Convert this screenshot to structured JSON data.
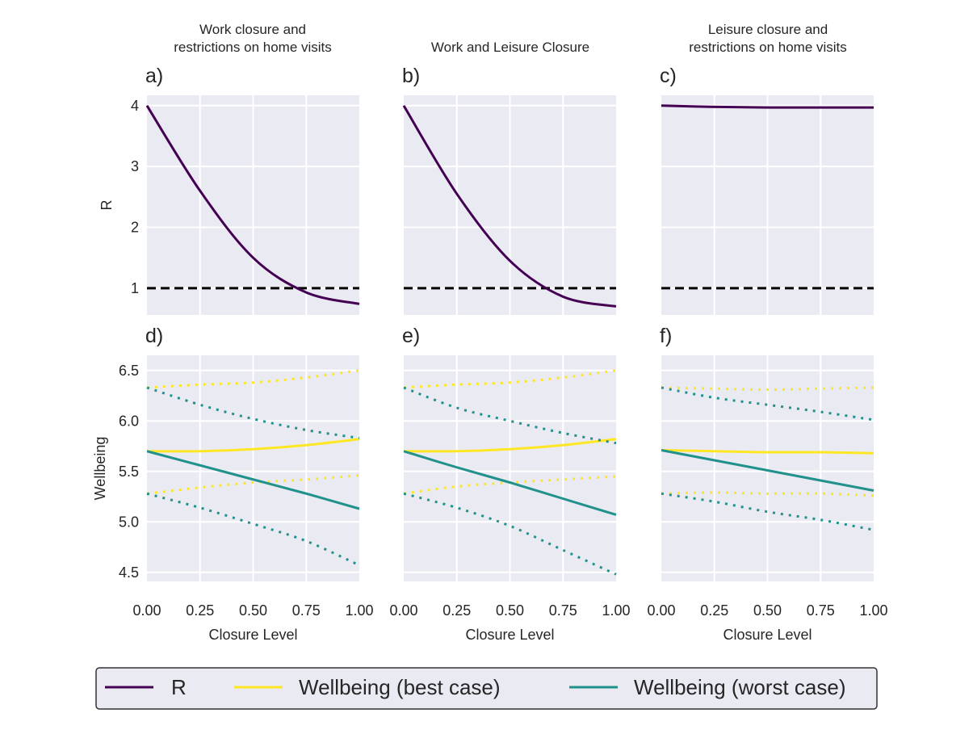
{
  "colors": {
    "R": "#440154",
    "best": "#fde725",
    "worst": "#21918c",
    "threshold": "#000000",
    "panel_bg": "#eaeaf2",
    "grid": "#ffffff"
  },
  "chart_data": [
    {
      "type": "line",
      "panel": "a)",
      "title": [
        "Work closure and",
        "restrictions on home visits"
      ],
      "ylabel": "R",
      "xlabel": "",
      "ylim": [
        0.56,
        4.17
      ],
      "xlim": [
        0,
        1
      ],
      "yticks": [
        "1",
        "2",
        "3",
        "4"
      ],
      "x": [
        0,
        0.25,
        0.5,
        0.75,
        1.0
      ],
      "series": [
        {
          "name": "R",
          "values": [
            4.0,
            2.6,
            1.5,
            0.93,
            0.74
          ]
        }
      ],
      "threshold": 1,
      "grid": true
    },
    {
      "type": "line",
      "panel": "b)",
      "title": [
        "Work and Leisure Closure"
      ],
      "ylabel": "",
      "xlabel": "",
      "ylim": [
        0.56,
        4.17
      ],
      "xlim": [
        0,
        1
      ],
      "x": [
        0,
        0.25,
        0.5,
        0.75,
        1.0
      ],
      "series": [
        {
          "name": "R",
          "values": [
            4.0,
            2.55,
            1.45,
            0.86,
            0.7
          ]
        }
      ],
      "threshold": 1,
      "grid": true
    },
    {
      "type": "line",
      "panel": "c)",
      "title": [
        "Leisure closure and",
        "restrictions on home visits"
      ],
      "ylabel": "",
      "xlabel": "",
      "ylim": [
        0.56,
        4.17
      ],
      "xlim": [
        0,
        1
      ],
      "x": [
        0,
        0.25,
        0.5,
        0.75,
        1.0
      ],
      "series": [
        {
          "name": "R",
          "values": [
            4.0,
            3.98,
            3.97,
            3.97,
            3.97
          ]
        }
      ],
      "threshold": 1,
      "grid": true
    },
    {
      "type": "line",
      "panel": "d)",
      "ylabel": "Wellbeing",
      "xlabel": "Closure Level",
      "ylim": [
        4.41,
        6.65
      ],
      "xlim": [
        0,
        1
      ],
      "yticks": [
        "4.5",
        "5.0",
        "5.5",
        "6.0",
        "6.5"
      ],
      "xticks": [
        "0.00",
        "0.25",
        "0.50",
        "0.75",
        "1.00"
      ],
      "x": [
        0,
        0.25,
        0.5,
        0.75,
        1.0
      ],
      "series": [
        {
          "name": "Wellbeing (best case)",
          "values": [
            5.7,
            5.7,
            5.72,
            5.76,
            5.82
          ],
          "upper": [
            6.33,
            6.36,
            6.38,
            6.43,
            6.5
          ],
          "lower": [
            5.28,
            5.34,
            5.39,
            5.42,
            5.46
          ]
        },
        {
          "name": "Wellbeing (worst case)",
          "values": [
            5.7,
            5.56,
            5.42,
            5.28,
            5.13
          ],
          "upper": [
            6.33,
            6.16,
            6.02,
            5.91,
            5.83
          ],
          "lower": [
            5.28,
            5.14,
            4.98,
            4.81,
            4.57
          ]
        }
      ],
      "grid": true
    },
    {
      "type": "line",
      "panel": "e)",
      "ylabel": "",
      "xlabel": "Closure Level",
      "ylim": [
        4.41,
        6.65
      ],
      "xlim": [
        0,
        1
      ],
      "xticks": [
        "0.00",
        "0.25",
        "0.50",
        "0.75",
        "1.00"
      ],
      "x": [
        0,
        0.25,
        0.5,
        0.75,
        1.0
      ],
      "series": [
        {
          "name": "Wellbeing (best case)",
          "values": [
            5.7,
            5.7,
            5.72,
            5.76,
            5.82
          ],
          "upper": [
            6.33,
            6.36,
            6.38,
            6.43,
            6.5
          ],
          "lower": [
            5.28,
            5.35,
            5.39,
            5.42,
            5.45
          ]
        },
        {
          "name": "Wellbeing (worst case)",
          "values": [
            5.7,
            5.54,
            5.39,
            5.23,
            5.07
          ],
          "upper": [
            6.33,
            6.13,
            6.0,
            5.88,
            5.78
          ],
          "lower": [
            5.28,
            5.14,
            4.96,
            4.72,
            4.48
          ]
        }
      ],
      "grid": true
    },
    {
      "type": "line",
      "panel": "f)",
      "ylabel": "",
      "xlabel": "Closure Level",
      "ylim": [
        4.41,
        6.65
      ],
      "xlim": [
        0,
        1
      ],
      "xticks": [
        "0.00",
        "0.25",
        "0.50",
        "0.75",
        "1.00"
      ],
      "x": [
        0,
        0.25,
        0.5,
        0.75,
        1.0
      ],
      "series": [
        {
          "name": "Wellbeing (best case)",
          "values": [
            5.71,
            5.7,
            5.69,
            5.69,
            5.68
          ],
          "upper": [
            6.33,
            6.32,
            6.31,
            6.32,
            6.33
          ],
          "lower": [
            5.28,
            5.29,
            5.28,
            5.28,
            5.26
          ]
        },
        {
          "name": "Wellbeing (worst case)",
          "values": [
            5.71,
            5.61,
            5.51,
            5.41,
            5.31
          ],
          "upper": [
            6.33,
            6.23,
            6.16,
            6.09,
            6.01
          ],
          "lower": [
            5.28,
            5.2,
            5.1,
            5.02,
            4.92
          ]
        }
      ],
      "grid": true
    }
  ],
  "legend": {
    "placement": "bottom",
    "items": [
      "R",
      "Wellbeing (best case)",
      "Wellbeing (worst case)"
    ]
  }
}
